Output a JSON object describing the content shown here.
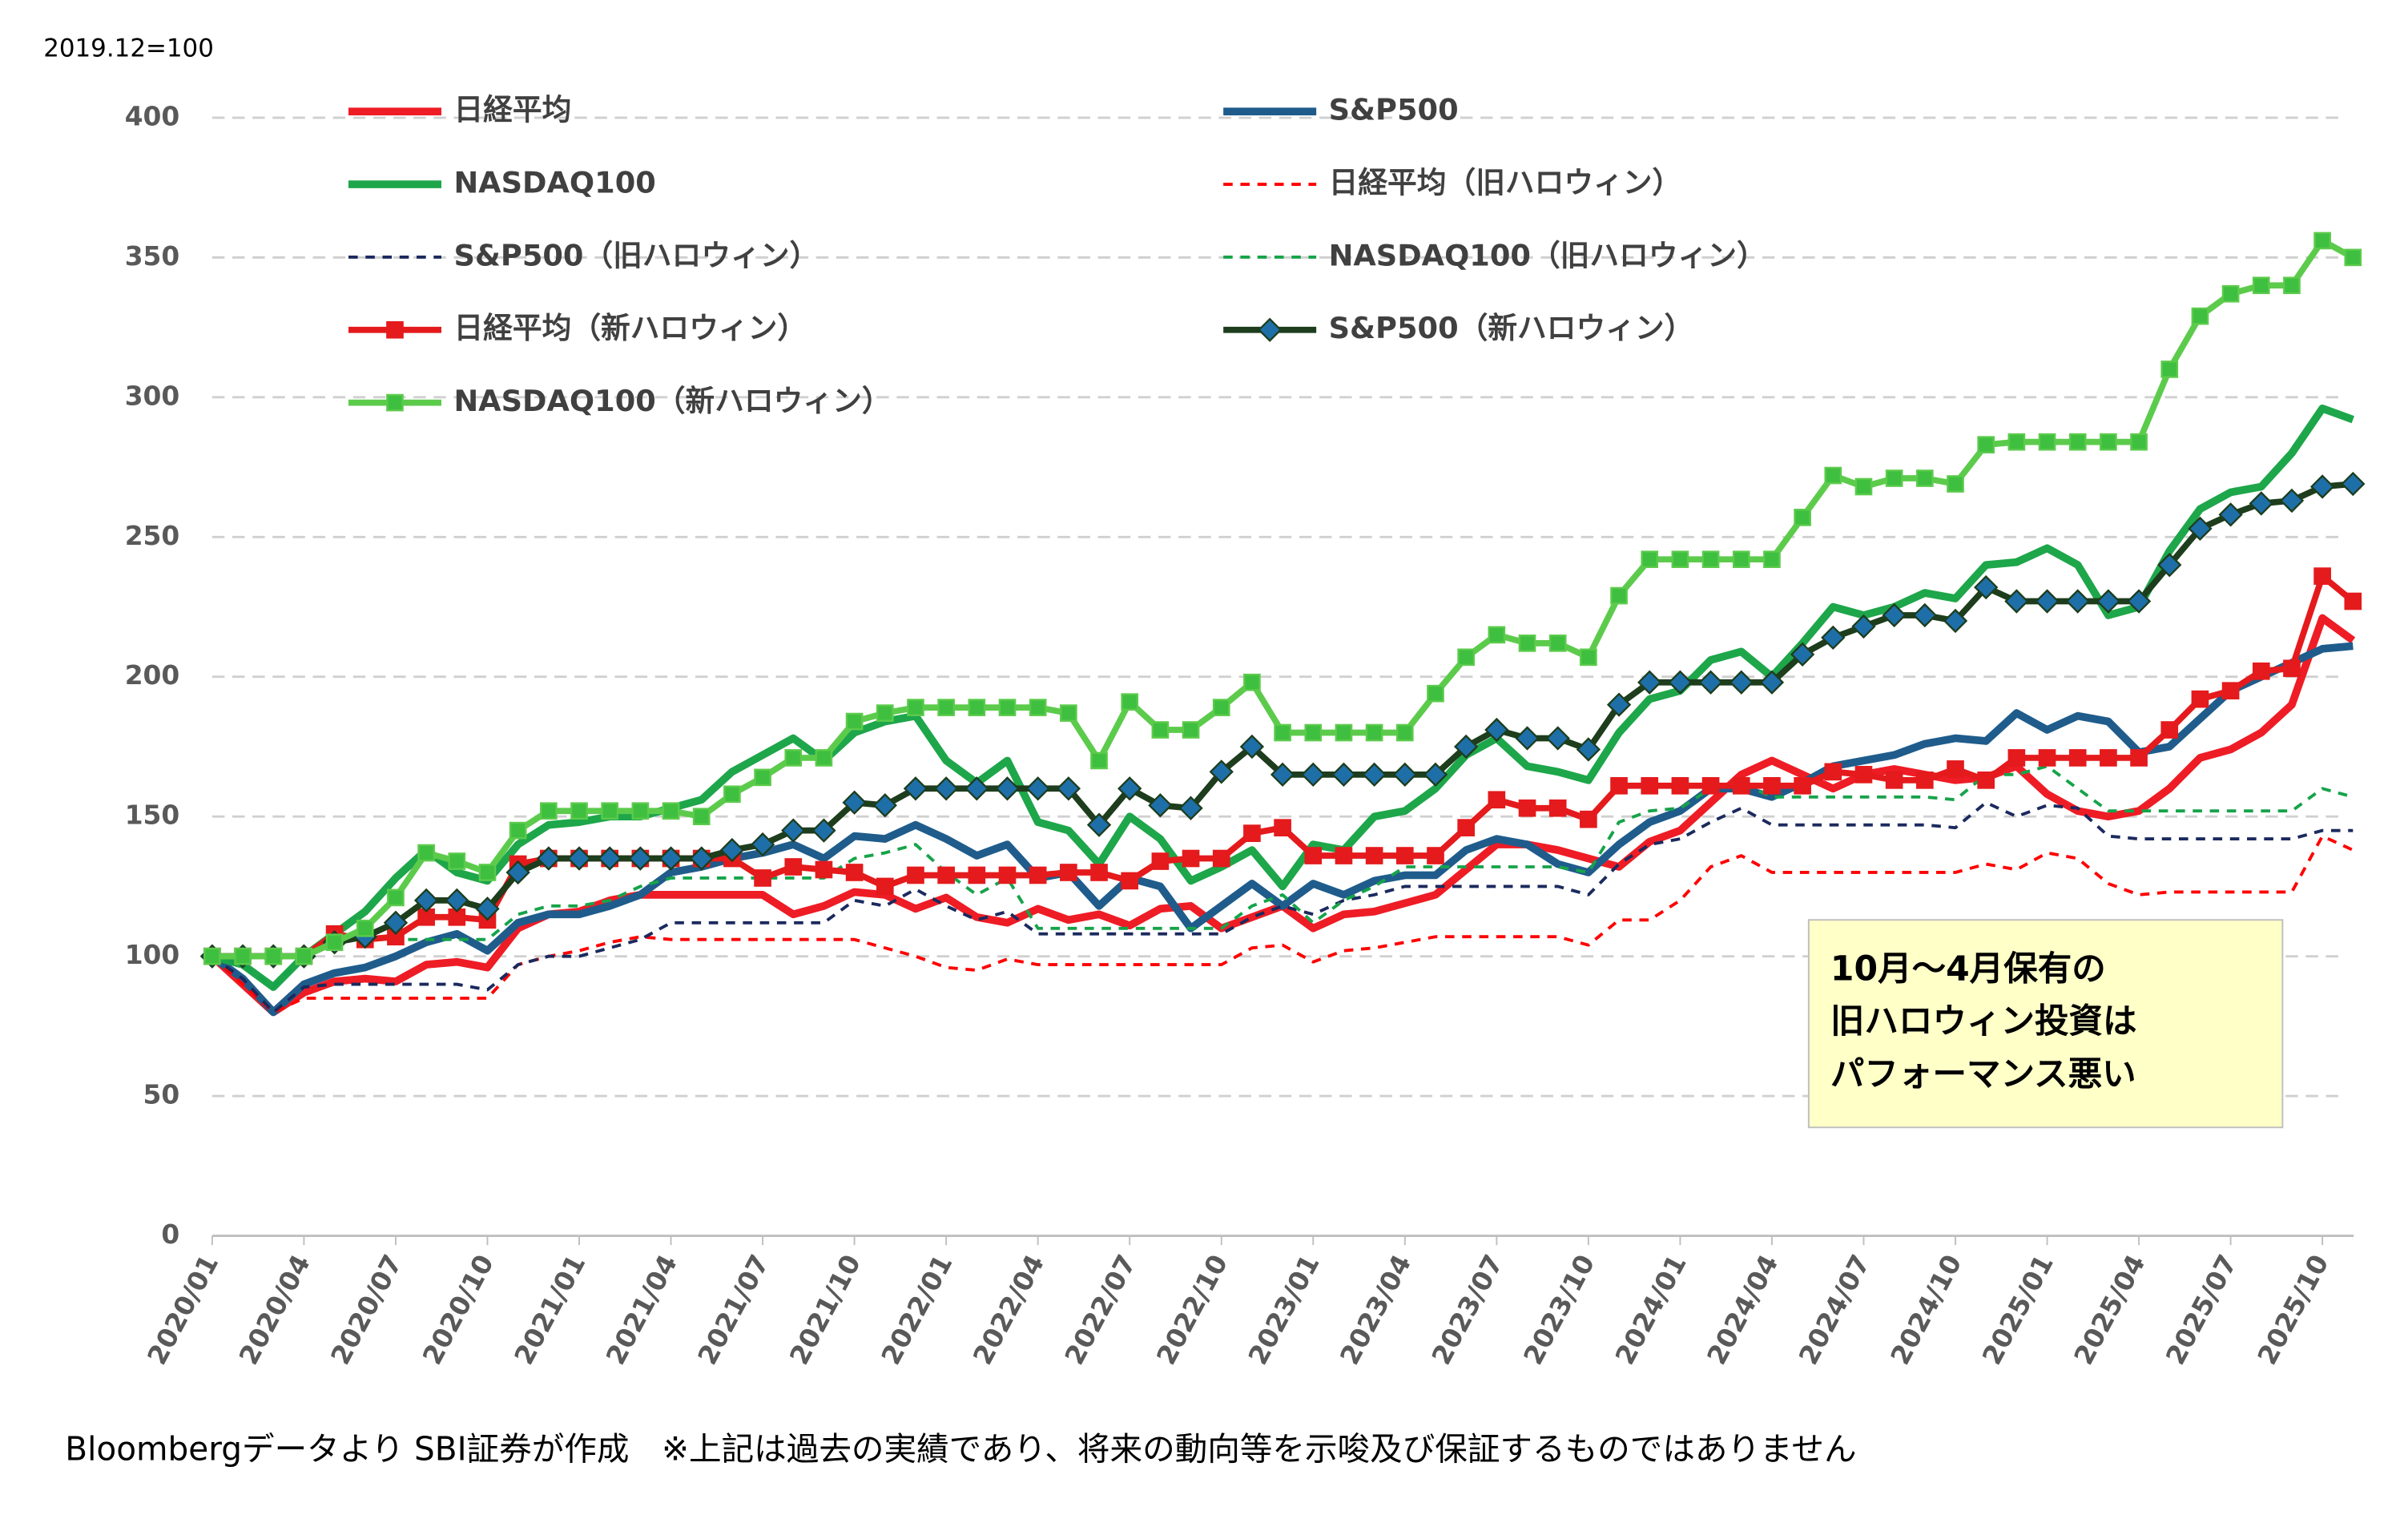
{
  "chart_data": {
    "type": "line",
    "unit_label": "2019.12=100",
    "source": "Bloombergデータより SBI証券が作成　※上記は過去の実績であり、将来の動向等を示唆及び保証するものではありません",
    "annotation": [
      "10月～4月保有の",
      "旧ハロウィン投資は",
      "パフォーマンス悪い"
    ],
    "categories": [
      "2020/01",
      null,
      null,
      "2020/04",
      null,
      null,
      "2020/07",
      null,
      null,
      "2020/10",
      null,
      null,
      "2021/01",
      null,
      null,
      "2021/04",
      null,
      null,
      "2021/07",
      null,
      null,
      "2021/10",
      null,
      null,
      "2022/01",
      null,
      null,
      "2022/04",
      null,
      null,
      "2022/07",
      null,
      null,
      "2022/10",
      null,
      null,
      "2023/01",
      null,
      null,
      "2023/04",
      null,
      null,
      "2023/07",
      null,
      null,
      "2023/10",
      null,
      null,
      "2024/01",
      null,
      null,
      "2024/04",
      null,
      null,
      "2024/07",
      null,
      null,
      "2024/10",
      null,
      null,
      "2025/01",
      null,
      null,
      "2025/04",
      null,
      null,
      "2025/07",
      null,
      null,
      "2025/10",
      null
    ],
    "ylim": [
      0,
      400
    ],
    "yticks": [
      0,
      50,
      100,
      150,
      200,
      250,
      300,
      350,
      400
    ],
    "grid": true,
    "legend": "top",
    "series": [
      {
        "name": "日経平均",
        "color": "#ee1c25",
        "width": 5,
        "values": [
          100,
          90,
          80,
          87,
          91,
          92,
          91,
          97,
          98,
          96,
          110,
          115,
          116,
          120,
          122,
          122,
          122,
          122,
          122,
          115,
          118,
          123,
          122,
          117,
          121,
          114,
          112,
          117,
          113,
          115,
          111,
          117,
          118,
          110,
          114,
          118,
          110,
          115,
          116,
          119,
          122,
          131,
          140,
          140,
          138,
          135,
          132,
          141,
          145,
          155,
          165,
          170,
          165,
          160,
          165,
          167,
          165,
          163,
          164,
          168,
          158,
          152,
          150,
          152,
          160,
          171,
          174,
          180,
          190,
          221,
          213
        ]
      },
      {
        "name": "S&P500",
        "color": "#1f5c8b",
        "width": 5,
        "values": [
          100,
          92,
          80,
          90,
          94,
          96,
          100,
          105,
          108,
          102,
          112,
          115,
          115,
          118,
          122,
          130,
          132,
          135,
          137,
          140,
          135,
          143,
          142,
          147,
          142,
          136,
          140,
          128,
          130,
          118,
          128,
          125,
          110,
          118,
          126,
          118,
          126,
          122,
          127,
          129,
          129,
          138,
          142,
          140,
          133,
          130,
          140,
          148,
          152,
          160,
          160,
          157,
          162,
          168,
          170,
          172,
          176,
          178,
          177,
          187,
          181,
          186,
          184,
          173,
          175,
          185,
          195,
          200,
          205,
          210,
          211
        ]
      },
      {
        "name": "NASDAQ100",
        "color": "#1ea64a",
        "width": 5,
        "values": [
          100,
          97,
          89,
          100,
          108,
          116,
          128,
          138,
          130,
          127,
          140,
          147,
          148,
          150,
          150,
          153,
          156,
          166,
          172,
          178,
          170,
          180,
          184,
          186,
          170,
          162,
          170,
          148,
          145,
          133,
          150,
          142,
          127,
          132,
          138,
          125,
          140,
          138,
          150,
          152,
          160,
          172,
          178,
          168,
          166,
          163,
          180,
          192,
          195,
          206,
          209,
          200,
          212,
          225,
          222,
          225,
          230,
          228,
          240,
          241,
          246,
          240,
          222,
          225,
          245,
          260,
          266,
          268,
          280,
          296,
          292
        ]
      },
      {
        "name": "日経平均（旧ハロウィン）",
        "color": "#ff0000",
        "width": 2,
        "dash": true,
        "values": [
          100,
          90,
          80,
          85,
          85,
          85,
          85,
          85,
          85,
          85,
          97,
          100,
          102,
          105,
          107,
          106,
          106,
          106,
          106,
          106,
          106,
          106,
          103,
          100,
          96,
          95,
          99,
          97,
          97,
          97,
          97,
          97,
          97,
          97,
          103,
          104,
          98,
          102,
          103,
          105,
          107,
          107,
          107,
          107,
          107,
          104,
          113,
          113,
          120,
          132,
          136,
          130,
          130,
          130,
          130,
          130,
          130,
          130,
          133,
          131,
          137,
          135,
          126,
          122,
          123,
          123,
          123,
          123,
          123,
          143,
          138
        ]
      },
      {
        "name": "S&P500（旧ハロウィン）",
        "color": "#1b2a5e",
        "width": 2,
        "dash": true,
        "values": [
          100,
          92,
          80,
          89,
          90,
          90,
          90,
          90,
          90,
          88,
          97,
          100,
          100,
          103,
          106,
          112,
          112,
          112,
          112,
          112,
          112,
          120,
          118,
          124,
          118,
          113,
          116,
          108,
          108,
          108,
          108,
          108,
          108,
          108,
          114,
          118,
          115,
          120,
          122,
          125,
          125,
          125,
          125,
          125,
          125,
          122,
          133,
          140,
          142,
          148,
          153,
          147,
          147,
          147,
          147,
          147,
          147,
          146,
          155,
          150,
          154,
          153,
          143,
          142,
          142,
          142,
          142,
          142,
          142,
          145,
          145
        ]
      },
      {
        "name": "NASDAQ100（旧ハロウィン）",
        "color": "#16a34a",
        "width": 2,
        "dash": true,
        "values": [
          100,
          97,
          89,
          100,
          106,
          106,
          106,
          106,
          106,
          106,
          115,
          118,
          118,
          120,
          125,
          128,
          128,
          128,
          128,
          128,
          128,
          135,
          137,
          140,
          130,
          122,
          128,
          110,
          110,
          110,
          110,
          110,
          110,
          110,
          118,
          122,
          112,
          120,
          125,
          132,
          132,
          132,
          132,
          132,
          132,
          130,
          148,
          152,
          153,
          160,
          162,
          157,
          157,
          157,
          157,
          157,
          157,
          156,
          165,
          165,
          168,
          160,
          152,
          152,
          152,
          152,
          152,
          152,
          152,
          160,
          157
        ]
      },
      {
        "name": "日経平均（新ハロウィン）",
        "color": "#e41a1c",
        "width": 4,
        "marker": "square",
        "marker_color": "#e41a1c",
        "values": [
          100,
          100,
          100,
          100,
          108,
          106,
          107,
          114,
          114,
          113,
          133,
          135,
          135,
          135,
          135,
          135,
          135,
          135,
          128,
          132,
          131,
          130,
          125,
          129,
          129,
          129,
          129,
          129,
          130,
          130,
          127,
          134,
          135,
          135,
          144,
          146,
          136,
          136,
          136,
          136,
          136,
          146,
          156,
          153,
          153,
          149,
          161,
          161,
          161,
          161,
          161,
          161,
          161,
          166,
          165,
          163,
          163,
          167,
          163,
          171,
          171,
          171,
          171,
          171,
          181,
          192,
          195,
          202,
          203,
          236,
          227
        ]
      },
      {
        "name": "S&P500（新ハロウィン）",
        "color": "#1d3d1d",
        "width": 4,
        "marker": "diamond",
        "marker_color": "#1e6fa8",
        "values": [
          100,
          100,
          100,
          100,
          105,
          107,
          112,
          120,
          120,
          117,
          130,
          135,
          135,
          135,
          135,
          135,
          135,
          138,
          140,
          145,
          145,
          155,
          154,
          160,
          160,
          160,
          160,
          160,
          160,
          147,
          160,
          154,
          153,
          166,
          175,
          165,
          165,
          165,
          165,
          165,
          165,
          175,
          181,
          178,
          178,
          174,
          190,
          198,
          198,
          198,
          198,
          198,
          208,
          214,
          218,
          222,
          222,
          220,
          232,
          227,
          227,
          227,
          227,
          227,
          240,
          253,
          258,
          262,
          263,
          268,
          269
        ]
      },
      {
        "name": "NASDAQ100（新ハロウィン）",
        "color": "#5ccb4c",
        "width": 4,
        "marker": "square",
        "marker_color": "#3fbf3f",
        "values": [
          100,
          100,
          100,
          100,
          105,
          110,
          121,
          137,
          134,
          130,
          145,
          152,
          152,
          152,
          152,
          152,
          150,
          158,
          164,
          171,
          171,
          184,
          187,
          189,
          189,
          189,
          189,
          189,
          187,
          170,
          191,
          181,
          181,
          189,
          198,
          180,
          180,
          180,
          180,
          180,
          194,
          207,
          215,
          212,
          212,
          207,
          229,
          242,
          242,
          242,
          242,
          242,
          257,
          272,
          268,
          271,
          271,
          269,
          283,
          284,
          284,
          284,
          284,
          284,
          310,
          329,
          337,
          340,
          340,
          356,
          350
        ]
      }
    ]
  }
}
